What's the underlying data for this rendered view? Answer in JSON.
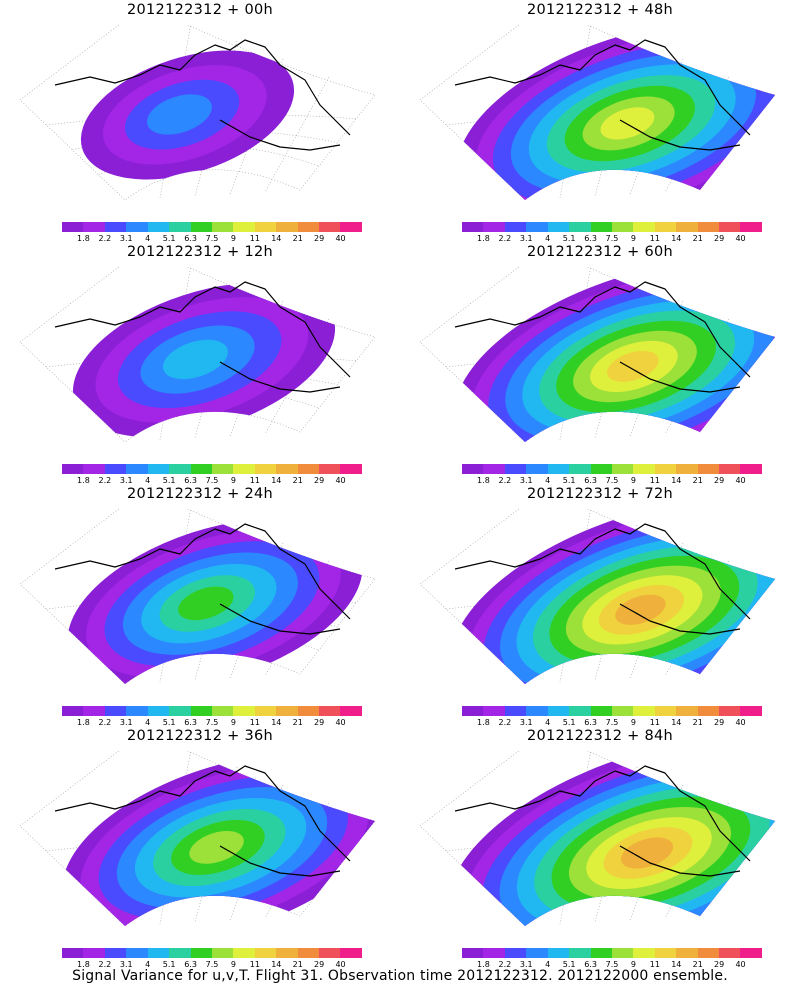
{
  "colorbar": {
    "colors": [
      "#8a1fd6",
      "#a325e6",
      "#4a4aff",
      "#2c88ff",
      "#21b8f2",
      "#2ad0a0",
      "#31cf23",
      "#9ce03a",
      "#dff03c",
      "#efd23d",
      "#efb13c",
      "#f08c3c",
      "#f0505a",
      "#f01e8a"
    ],
    "ticks": [
      "1.8",
      "2.2",
      "3.1",
      "4",
      "5.1",
      "6.3",
      "7.5",
      "9",
      "11",
      "14",
      "21",
      "29",
      "40"
    ]
  },
  "panels": [
    {
      "title": "2012122312 + 00h",
      "intensity": 0.25
    },
    {
      "title": "2012122312 + 48h",
      "intensity": 0.7
    },
    {
      "title": "2012122312 + 12h",
      "intensity": 0.4
    },
    {
      "title": "2012122312 + 60h",
      "intensity": 0.75
    },
    {
      "title": "2012122312 + 24h",
      "intensity": 0.5
    },
    {
      "title": "2012122312 + 72h",
      "intensity": 0.82
    },
    {
      "title": "2012122312 + 36h",
      "intensity": 0.6
    },
    {
      "title": "2012122312 + 84h",
      "intensity": 0.88
    }
  ],
  "caption": "Signal Variance for u,v,T. Flight 31. Observation time 2012122312. 2012122000 ensemble."
}
